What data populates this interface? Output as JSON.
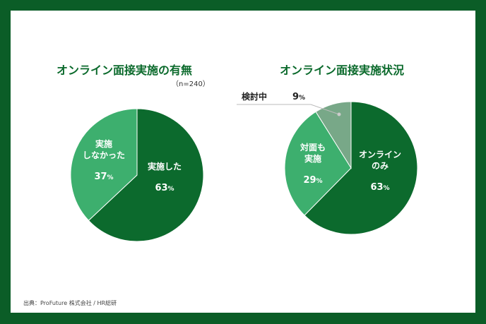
{
  "source": "出典：ProFuture 株式会社 / HR総研",
  "colors": {
    "border": "#0b5d27",
    "dark": "#0c6a2d",
    "mid": "#3daf6e",
    "gray": "#78a888"
  },
  "chart_data": [
    {
      "type": "pie",
      "title": "オンライン面接実施の有無",
      "note": "（n=240）",
      "slices": [
        {
          "label": "実施した",
          "value": 63,
          "pct": "63",
          "color": "#0c6a2d"
        },
        {
          "label": "実施 しなかった",
          "value": 37,
          "pct": "37",
          "color": "#3daf6e"
        }
      ]
    },
    {
      "type": "pie",
      "title": "オンライン面接実施状況",
      "slices": [
        {
          "label": "オンライン のみ",
          "value": 63,
          "pct": "63",
          "color": "#0c6a2d"
        },
        {
          "label": "対面も 実施",
          "value": 29,
          "pct": "29",
          "color": "#3daf6e"
        },
        {
          "label": "検討中",
          "value": 9,
          "pct": "9",
          "color": "#78a888"
        }
      ]
    }
  ]
}
